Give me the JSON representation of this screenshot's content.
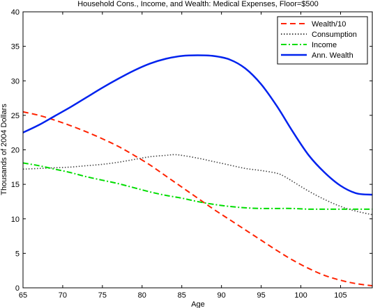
{
  "chart_data": {
    "type": "line",
    "title": "Household Cons., Income, and Wealth: Medical Expenses, Floor=$500",
    "xlabel": "Age",
    "ylabel": "Thousands of 2004 Dollars",
    "xlim": [
      65,
      109
    ],
    "ylim": [
      0,
      40
    ],
    "xticks": [
      65,
      70,
      75,
      80,
      85,
      90,
      95,
      100,
      105
    ],
    "yticks": [
      0,
      5,
      10,
      15,
      20,
      25,
      30,
      35,
      40
    ],
    "grid": false,
    "legend_position": "top-right",
    "series": [
      {
        "name": "Wealth/10",
        "color": "#ff2200",
        "style": "dashed",
        "x": [
          65,
          67,
          69,
          71,
          73,
          75,
          77,
          79,
          81,
          83,
          85,
          87,
          89,
          91,
          93,
          95,
          97,
          99,
          101,
          103,
          105,
          107,
          109
        ],
        "y": [
          25.5,
          25.0,
          24.3,
          23.5,
          22.6,
          21.6,
          20.5,
          19.2,
          17.8,
          16.2,
          14.6,
          13.0,
          11.4,
          9.9,
          8.4,
          6.9,
          5.4,
          4.0,
          2.8,
          1.8,
          1.1,
          0.6,
          0.3
        ]
      },
      {
        "name": "Consumption",
        "color": "#444444",
        "style": "dotted",
        "x": [
          65,
          67,
          69,
          71,
          73,
          75,
          77,
          79,
          81,
          83,
          84,
          85,
          87,
          89,
          91,
          93,
          95,
          97,
          98,
          99,
          101,
          103,
          105,
          107,
          109
        ],
        "y": [
          17.2,
          17.3,
          17.4,
          17.5,
          17.7,
          17.9,
          18.2,
          18.6,
          19.0,
          19.2,
          19.3,
          19.2,
          18.8,
          18.3,
          17.8,
          17.3,
          17.0,
          16.6,
          16.1,
          15.4,
          14.0,
          12.8,
          11.8,
          11.1,
          10.6
        ]
      },
      {
        "name": "Income",
        "color": "#00dd00",
        "style": "dashdot",
        "x": [
          65,
          67,
          69,
          71,
          73,
          75,
          77,
          79,
          81,
          83,
          85,
          87,
          89,
          91,
          93,
          95,
          97,
          99,
          101,
          103,
          105,
          107,
          109
        ],
        "y": [
          18.1,
          17.7,
          17.2,
          16.7,
          16.1,
          15.6,
          15.1,
          14.5,
          13.9,
          13.4,
          13.0,
          12.5,
          12.1,
          11.8,
          11.6,
          11.5,
          11.5,
          11.5,
          11.4,
          11.4,
          11.4,
          11.4,
          11.4
        ]
      },
      {
        "name": "Ann. Wealth",
        "color": "#0022ee",
        "style": "solid",
        "x": [
          65,
          67,
          69,
          71,
          73,
          75,
          77,
          79,
          81,
          83,
          85,
          87,
          89,
          91,
          93,
          95,
          97,
          99,
          101,
          103,
          105,
          107,
          109
        ],
        "y": [
          22.5,
          23.6,
          24.9,
          26.2,
          27.6,
          29.0,
          30.3,
          31.5,
          32.5,
          33.2,
          33.6,
          33.7,
          33.6,
          33.1,
          31.8,
          29.5,
          26.3,
          22.6,
          19.2,
          16.7,
          14.8,
          13.7,
          13.5
        ]
      }
    ]
  }
}
